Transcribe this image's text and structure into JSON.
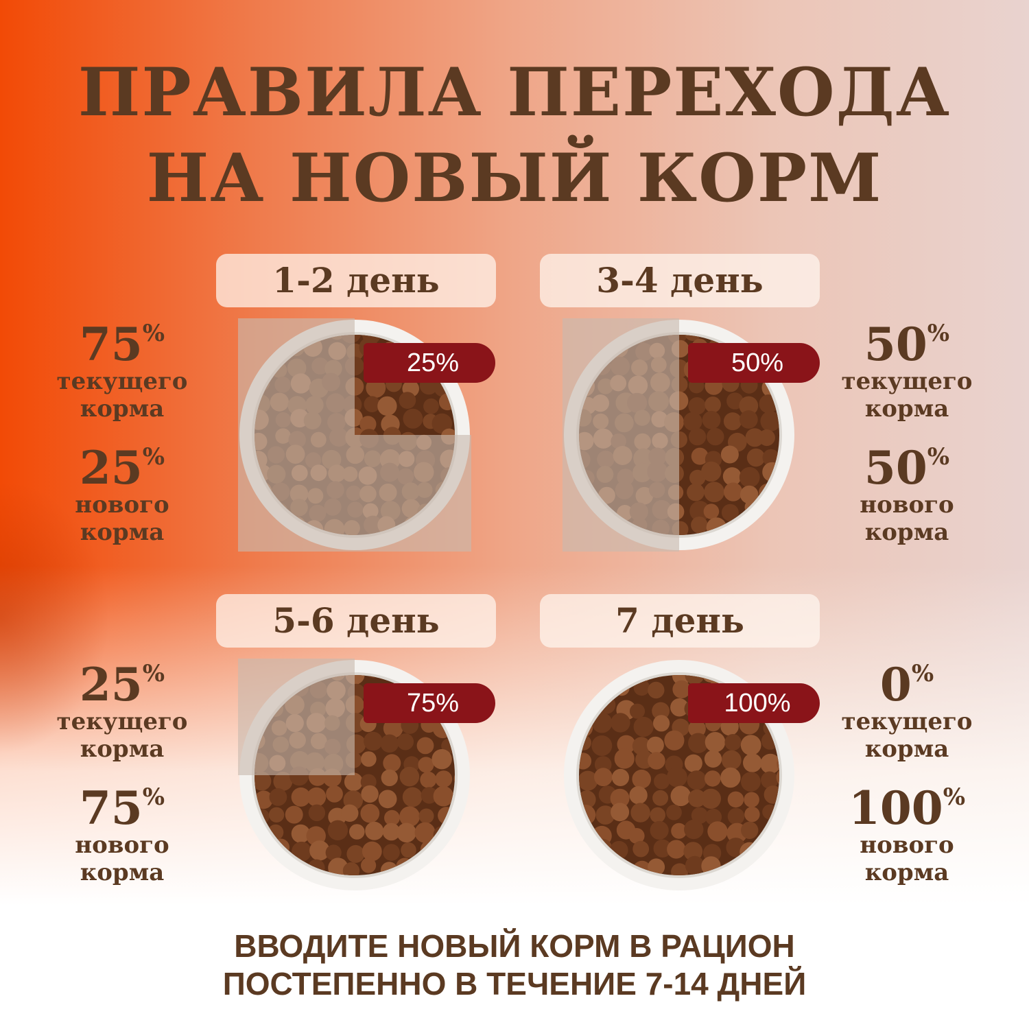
{
  "title": {
    "line1": "ПРАВИЛА ПЕРЕХОДА",
    "line2": "НА НОВЫЙ КОРМ"
  },
  "colors": {
    "text": "#5b3a22",
    "badge": "#8a1419",
    "old_food": "#a07a5c",
    "new_food": "#7a4424"
  },
  "steps": [
    {
      "day": "1-2 день",
      "badge": "25%",
      "new_percent": 25,
      "current_value": "75",
      "current_label1": "текущего",
      "current_label2": "корма",
      "new_value": "25",
      "new_label1": "нового",
      "new_label2": "корма",
      "pct": "%"
    },
    {
      "day": "3-4 день",
      "badge": "50%",
      "new_percent": 50,
      "current_value": "50",
      "current_label1": "текущего",
      "current_label2": "корма",
      "new_value": "50",
      "new_label1": "нового",
      "new_label2": "корма",
      "pct": "%"
    },
    {
      "day": "5-6 день",
      "badge": "75%",
      "new_percent": 75,
      "current_value": "25",
      "current_label1": "текущего",
      "current_label2": "корма",
      "new_value": "75",
      "new_label1": "нового",
      "new_label2": "корма",
      "pct": "%"
    },
    {
      "day": "7 день",
      "badge": "100%",
      "new_percent": 100,
      "current_value": "0",
      "current_label1": "текущего",
      "current_label2": "корма",
      "new_value": "100",
      "new_label1": "нового",
      "new_label2": "корма",
      "pct": "%"
    }
  ],
  "footer": {
    "line1": "ВВОДИТЕ НОВЫЙ КОРМ В РАЦИОН",
    "line2": "ПОСТЕПЕННО В ТЕЧЕНИЕ 7-14 ДНЕЙ"
  }
}
